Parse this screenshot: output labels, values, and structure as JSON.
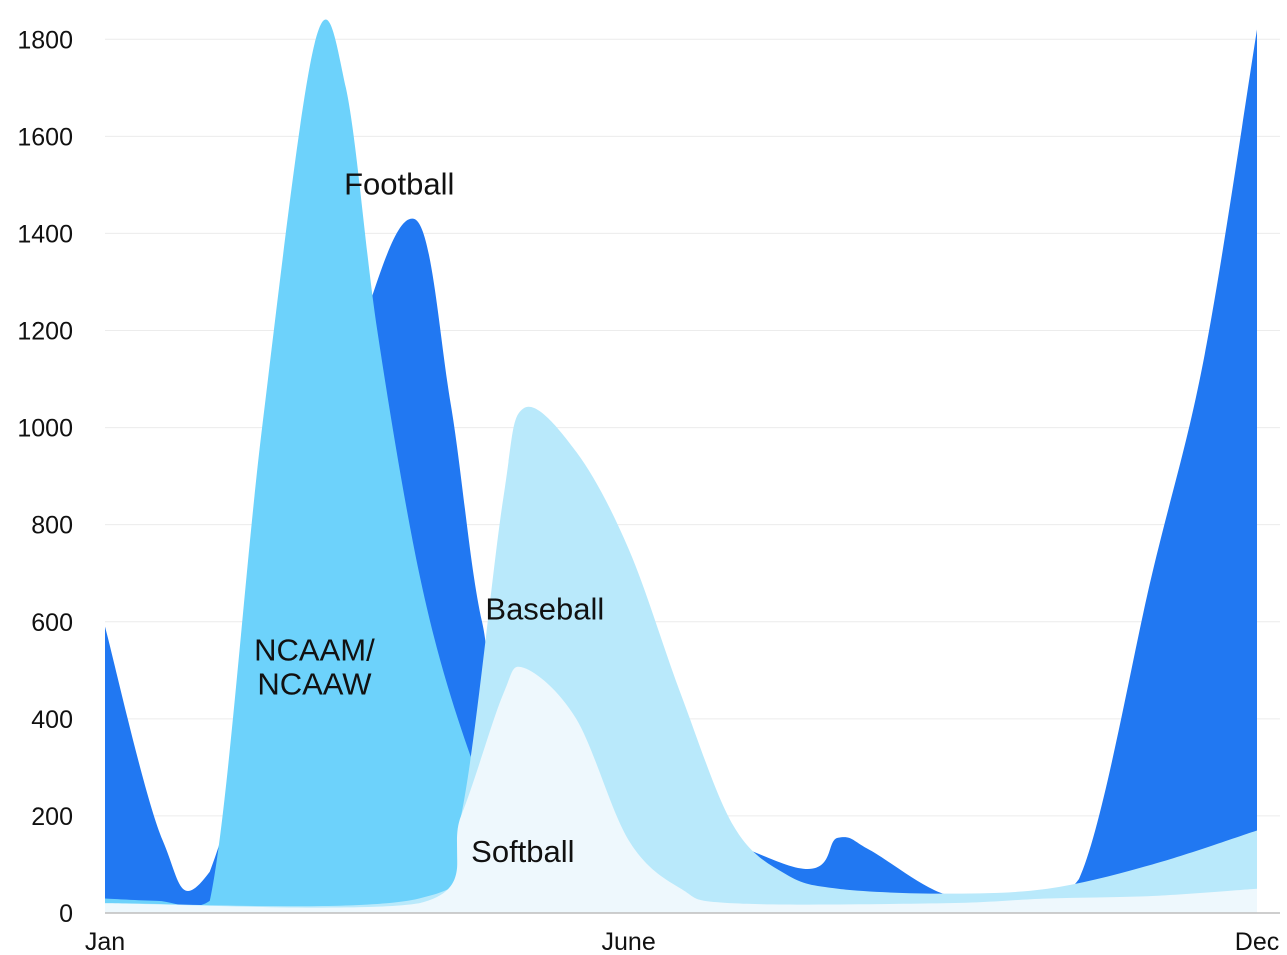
{
  "chart_data": {
    "type": "area",
    "x_tick_labels": [
      "Jan",
      "June",
      "Dec"
    ],
    "y_tick_labels": [
      "0",
      "200",
      "400",
      "600",
      "800",
      "1000",
      "1200",
      "1400",
      "1600",
      "1800"
    ],
    "ylim": [
      0,
      1850
    ],
    "grid": true,
    "legend": "none",
    "colors": {
      "Football": "#2178f2",
      "NCAAM/NCAAW": "#6dd2fb",
      "Baseball": "#b9e9fb",
      "Softball": "#eef8fd"
    },
    "series_labels": {
      "Football": "Football",
      "NCAAM/NCAAW": [
        "NCAAM/",
        "NCAAW"
      ],
      "Baseball": "Baseball",
      "Softball": "Softball"
    },
    "series": [
      {
        "name": "Football",
        "points": [
          [
            0,
            590
          ],
          [
            0.55,
            150
          ],
          [
            1,
            85
          ],
          [
            2.3,
            1100
          ],
          [
            2.95,
            1430
          ],
          [
            3.3,
            1050
          ],
          [
            3.6,
            600
          ],
          [
            4.0,
            380
          ],
          [
            6.5,
            100
          ],
          [
            7.0,
            155
          ],
          [
            7.3,
            130
          ],
          [
            8.0,
            40
          ],
          [
            8.6,
            35
          ],
          [
            9.3,
            70
          ],
          [
            10,
            700
          ],
          [
            10.5,
            1150
          ],
          [
            11,
            1820
          ]
        ]
      },
      {
        "name": "NCAAM/NCAAW",
        "points": [
          [
            0,
            30
          ],
          [
            0.5,
            25
          ],
          [
            1.0,
            25
          ],
          [
            1.5,
            1000
          ],
          [
            2.0,
            1790
          ],
          [
            2.3,
            1700
          ],
          [
            2.6,
            1200
          ],
          [
            3.0,
            700
          ],
          [
            3.4,
            380
          ],
          [
            3.8,
            180
          ],
          [
            4.3,
            90
          ],
          [
            5.0,
            50
          ],
          [
            6.0,
            40
          ],
          [
            8.0,
            35
          ],
          [
            11,
            40
          ]
        ]
      },
      {
        "name": "Baseball",
        "points": [
          [
            0,
            20
          ],
          [
            3.0,
            30
          ],
          [
            3.4,
            200
          ],
          [
            3.8,
            850
          ],
          [
            4.0,
            1040
          ],
          [
            4.5,
            950
          ],
          [
            5.0,
            750
          ],
          [
            5.5,
            450
          ],
          [
            6.0,
            180
          ],
          [
            6.5,
            80
          ],
          [
            7.0,
            50
          ],
          [
            8.0,
            40
          ],
          [
            9.0,
            50
          ],
          [
            10.0,
            100
          ],
          [
            11,
            170
          ]
        ]
      },
      {
        "name": "Softball",
        "points": [
          [
            0,
            20
          ],
          [
            3.0,
            20
          ],
          [
            3.4,
            200
          ],
          [
            3.8,
            450
          ],
          [
            4.0,
            505
          ],
          [
            4.5,
            400
          ],
          [
            5.0,
            150
          ],
          [
            5.5,
            50
          ],
          [
            6.0,
            20
          ],
          [
            8.0,
            20
          ],
          [
            9.0,
            30
          ],
          [
            10.0,
            35
          ],
          [
            11,
            50
          ]
        ]
      }
    ]
  }
}
